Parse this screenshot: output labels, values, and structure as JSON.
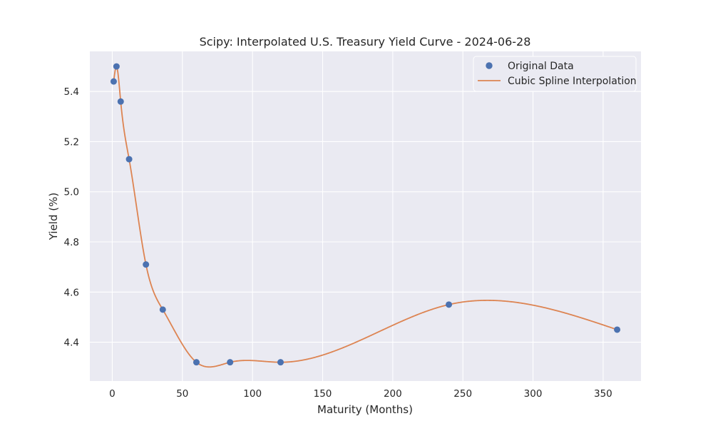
{
  "chart_data": {
    "type": "line",
    "title": "Scipy: Interpolated U.S. Treasury Yield Curve - 2024-06-28",
    "xlabel": "Maturity (Months)",
    "ylabel": "Yield (%)",
    "xlim": [
      -16,
      377
    ],
    "ylim": [
      4.245,
      5.56
    ],
    "xticks": [
      0,
      50,
      100,
      150,
      200,
      250,
      300,
      350
    ],
    "yticks": [
      4.4,
      4.6,
      4.8,
      5.0,
      5.2,
      5.4
    ],
    "grid": true,
    "legend_position": "top-right",
    "colors": {
      "background": "#eaeaf2",
      "grid": "#ffffff",
      "points": "#4c72b0",
      "line": "#dd8452",
      "text": "#262626"
    },
    "series": [
      {
        "name": "Original Data",
        "kind": "scatter",
        "x": [
          1,
          3,
          6,
          12,
          24,
          36,
          60,
          84,
          120,
          240,
          360
        ],
        "y": [
          5.44,
          5.5,
          5.36,
          5.13,
          4.71,
          4.53,
          4.32,
          4.32,
          4.32,
          4.55,
          4.45
        ]
      },
      {
        "name": "Cubic Spline Interpolation",
        "kind": "line",
        "x": [
          1,
          3,
          6,
          12,
          24,
          36,
          60,
          84,
          120,
          240,
          360
        ],
        "y": [
          5.44,
          5.5,
          5.36,
          5.13,
          4.71,
          4.53,
          4.32,
          4.32,
          4.32,
          4.55,
          4.45
        ]
      }
    ]
  }
}
